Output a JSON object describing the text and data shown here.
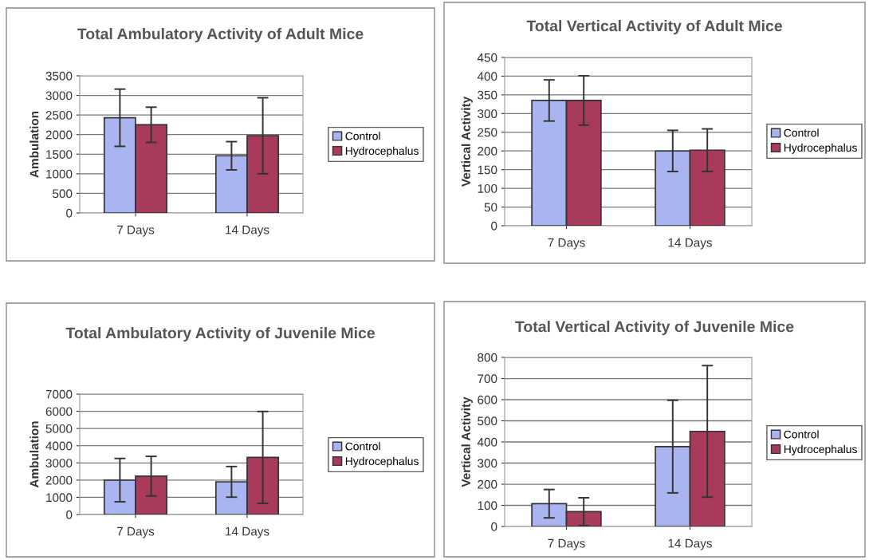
{
  "chart_data": [
    {
      "type": "bar",
      "title": "Total Ambulatory Activity of Adult Mice",
      "ylabel": "Ambulation",
      "categories": [
        "7 Days",
        "14 Days"
      ],
      "ylim": [
        0,
        3500
      ],
      "yticks": [
        0,
        500,
        1000,
        1500,
        2000,
        2500,
        3000,
        3500
      ],
      "grid": "y",
      "legend": "right",
      "series": [
        {
          "name": "Control",
          "color": "#aab4f0",
          "values": [
            2430,
            1460
          ],
          "errors": [
            730,
            360
          ]
        },
        {
          "name": "Hydrocephalus",
          "color": "#a83a5c",
          "values": [
            2250,
            1970
          ],
          "errors": [
            450,
            970
          ]
        }
      ]
    },
    {
      "type": "bar",
      "title": "Total Vertical Activity of Adult Mice",
      "ylabel": "Vertical Activity",
      "categories": [
        "7 Days",
        "14 Days"
      ],
      "ylim": [
        0,
        450
      ],
      "yticks": [
        0,
        50,
        100,
        150,
        200,
        250,
        300,
        350,
        400,
        450
      ],
      "grid": "y",
      "legend": "right",
      "series": [
        {
          "name": "Control",
          "color": "#aab4f0",
          "values": [
            335,
            200
          ],
          "errors": [
            55,
            55
          ]
        },
        {
          "name": "Hydrocephalus",
          "color": "#a83a5c",
          "values": [
            335,
            202
          ],
          "errors": [
            66,
            57
          ]
        }
      ]
    },
    {
      "type": "bar",
      "title": "Total Ambulatory Activity of Juvenile Mice",
      "ylabel": "Ambulation",
      "categories": [
        "7 Days",
        "14 Days"
      ],
      "ylim": [
        0,
        7000
      ],
      "yticks": [
        0,
        1000,
        2000,
        3000,
        4000,
        5000,
        6000,
        7000
      ],
      "grid": "y",
      "legend": "right",
      "series": [
        {
          "name": "Control",
          "color": "#aab4f0",
          "values": [
            2000,
            1900
          ],
          "errors": [
            1260,
            890
          ]
        },
        {
          "name": "Hydrocephalus",
          "color": "#a83a5c",
          "values": [
            2230,
            3320
          ],
          "errors": [
            1150,
            2670
          ]
        }
      ]
    },
    {
      "type": "bar",
      "title": "Total Vertical Activity of Juvenile Mice",
      "ylabel": "Vertical Activity",
      "categories": [
        "7 Days",
        "14 Days"
      ],
      "ylim": [
        0,
        800
      ],
      "yticks": [
        0,
        100,
        200,
        300,
        400,
        500,
        600,
        700,
        800
      ],
      "grid": "y",
      "legend": "right",
      "series": [
        {
          "name": "Control",
          "color": "#aab4f0",
          "values": [
            108,
            378
          ],
          "errors": [
            67,
            219
          ]
        },
        {
          "name": "Hydrocephalus",
          "color": "#a83a5c",
          "values": [
            70,
            450
          ],
          "errors": [
            66,
            311
          ]
        }
      ]
    }
  ]
}
